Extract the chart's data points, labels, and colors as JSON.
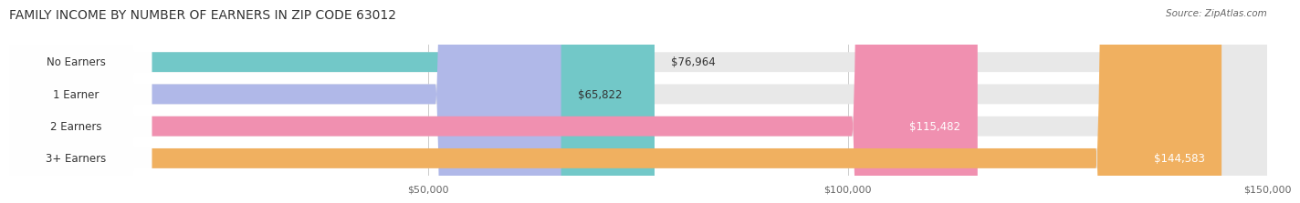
{
  "title": "FAMILY INCOME BY NUMBER OF EARNERS IN ZIP CODE 63012",
  "source": "Source: ZipAtlas.com",
  "categories": [
    "No Earners",
    "1 Earner",
    "2 Earners",
    "3+ Earners"
  ],
  "values": [
    76964,
    65822,
    115482,
    144583
  ],
  "bar_colors": [
    "#72c8c8",
    "#b0b8e8",
    "#f090b0",
    "#f0b060"
  ],
  "bar_bg_color": "#f0f0f0",
  "value_labels": [
    "$76,964",
    "$65,822",
    "$115,482",
    "$144,583"
  ],
  "xmin": 0,
  "xmax": 150000,
  "xtick_values": [
    50000,
    100000,
    150000
  ],
  "xtick_labels": [
    "$50,000",
    "$100,000",
    "$150,000"
  ],
  "background_color": "#ffffff",
  "title_fontsize": 10,
  "label_fontsize": 8.5,
  "value_fontsize": 8.5
}
